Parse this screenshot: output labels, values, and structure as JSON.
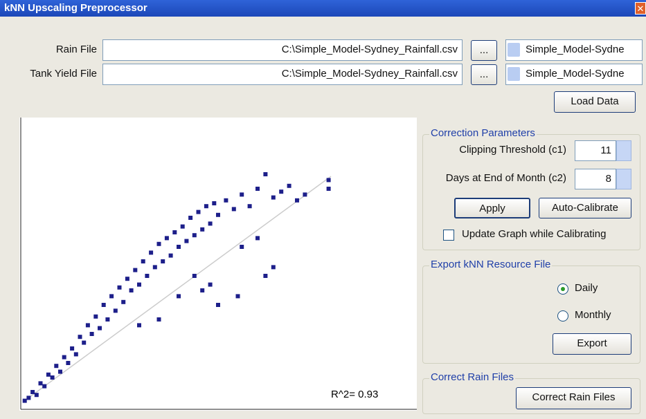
{
  "window": {
    "title": "kNN Upscaling Preprocessor"
  },
  "files": {
    "rain": {
      "label": "Rain File",
      "path": "C:\\Simple_Model-Sydney_Rainfall.csv",
      "browse": "...",
      "selection": "Simple_Model-Sydne"
    },
    "tank_yield": {
      "label": "Tank Yield File",
      "path": "C:\\Simple_Model-Sydney_Rainfall.csv",
      "browse": "...",
      "selection": "Simple_Model-Sydne"
    },
    "load_button": "Load Data"
  },
  "plot": {
    "annotation": "R^2= 0.93",
    "x": [
      1,
      2,
      3,
      4,
      5,
      6,
      7,
      8,
      9,
      10,
      11,
      12,
      13,
      14,
      15,
      16,
      17,
      18,
      19,
      20,
      21,
      22,
      23,
      24,
      25,
      26,
      27,
      28,
      29,
      30,
      31,
      32,
      33,
      34,
      35,
      36,
      37,
      38,
      39,
      40,
      41,
      42,
      43,
      44,
      45,
      46,
      47,
      48,
      49,
      50,
      52,
      54,
      56,
      58,
      60,
      62,
      64,
      66,
      68,
      70,
      72,
      78,
      78,
      44,
      40,
      46,
      56,
      60,
      62,
      64,
      55,
      50,
      48,
      35,
      30
    ],
    "y": [
      2,
      3,
      5,
      4,
      8,
      7,
      11,
      10,
      14,
      12,
      17,
      15,
      20,
      18,
      24,
      22,
      28,
      25,
      31,
      27,
      35,
      30,
      38,
      33,
      41,
      36,
      44,
      40,
      47,
      42,
      50,
      45,
      53,
      48,
      56,
      50,
      58,
      52,
      60,
      55,
      62,
      57,
      65,
      59,
      67,
      61,
      69,
      63,
      70,
      66,
      71,
      68,
      73,
      69,
      75,
      80,
      72,
      74,
      76,
      71,
      73,
      78,
      75,
      45,
      38,
      40,
      55,
      58,
      45,
      48,
      38,
      35,
      42,
      30,
      28
    ]
  },
  "correction": {
    "title": "Correction Parameters",
    "clipping": {
      "label": "Clipping Threshold (c1)",
      "value": "11"
    },
    "days": {
      "label": "Days at End of Month (c2)",
      "value": "8"
    },
    "apply": "Apply",
    "auto_calibrate": "Auto-Calibrate",
    "update_graph": "Update Graph while Calibrating"
  },
  "export": {
    "title": "Export kNN Resource File",
    "daily": "Daily",
    "monthly": "Monthly",
    "button": "Export"
  },
  "correct": {
    "title": "Correct Rain Files",
    "button": "Correct Rain Files"
  }
}
